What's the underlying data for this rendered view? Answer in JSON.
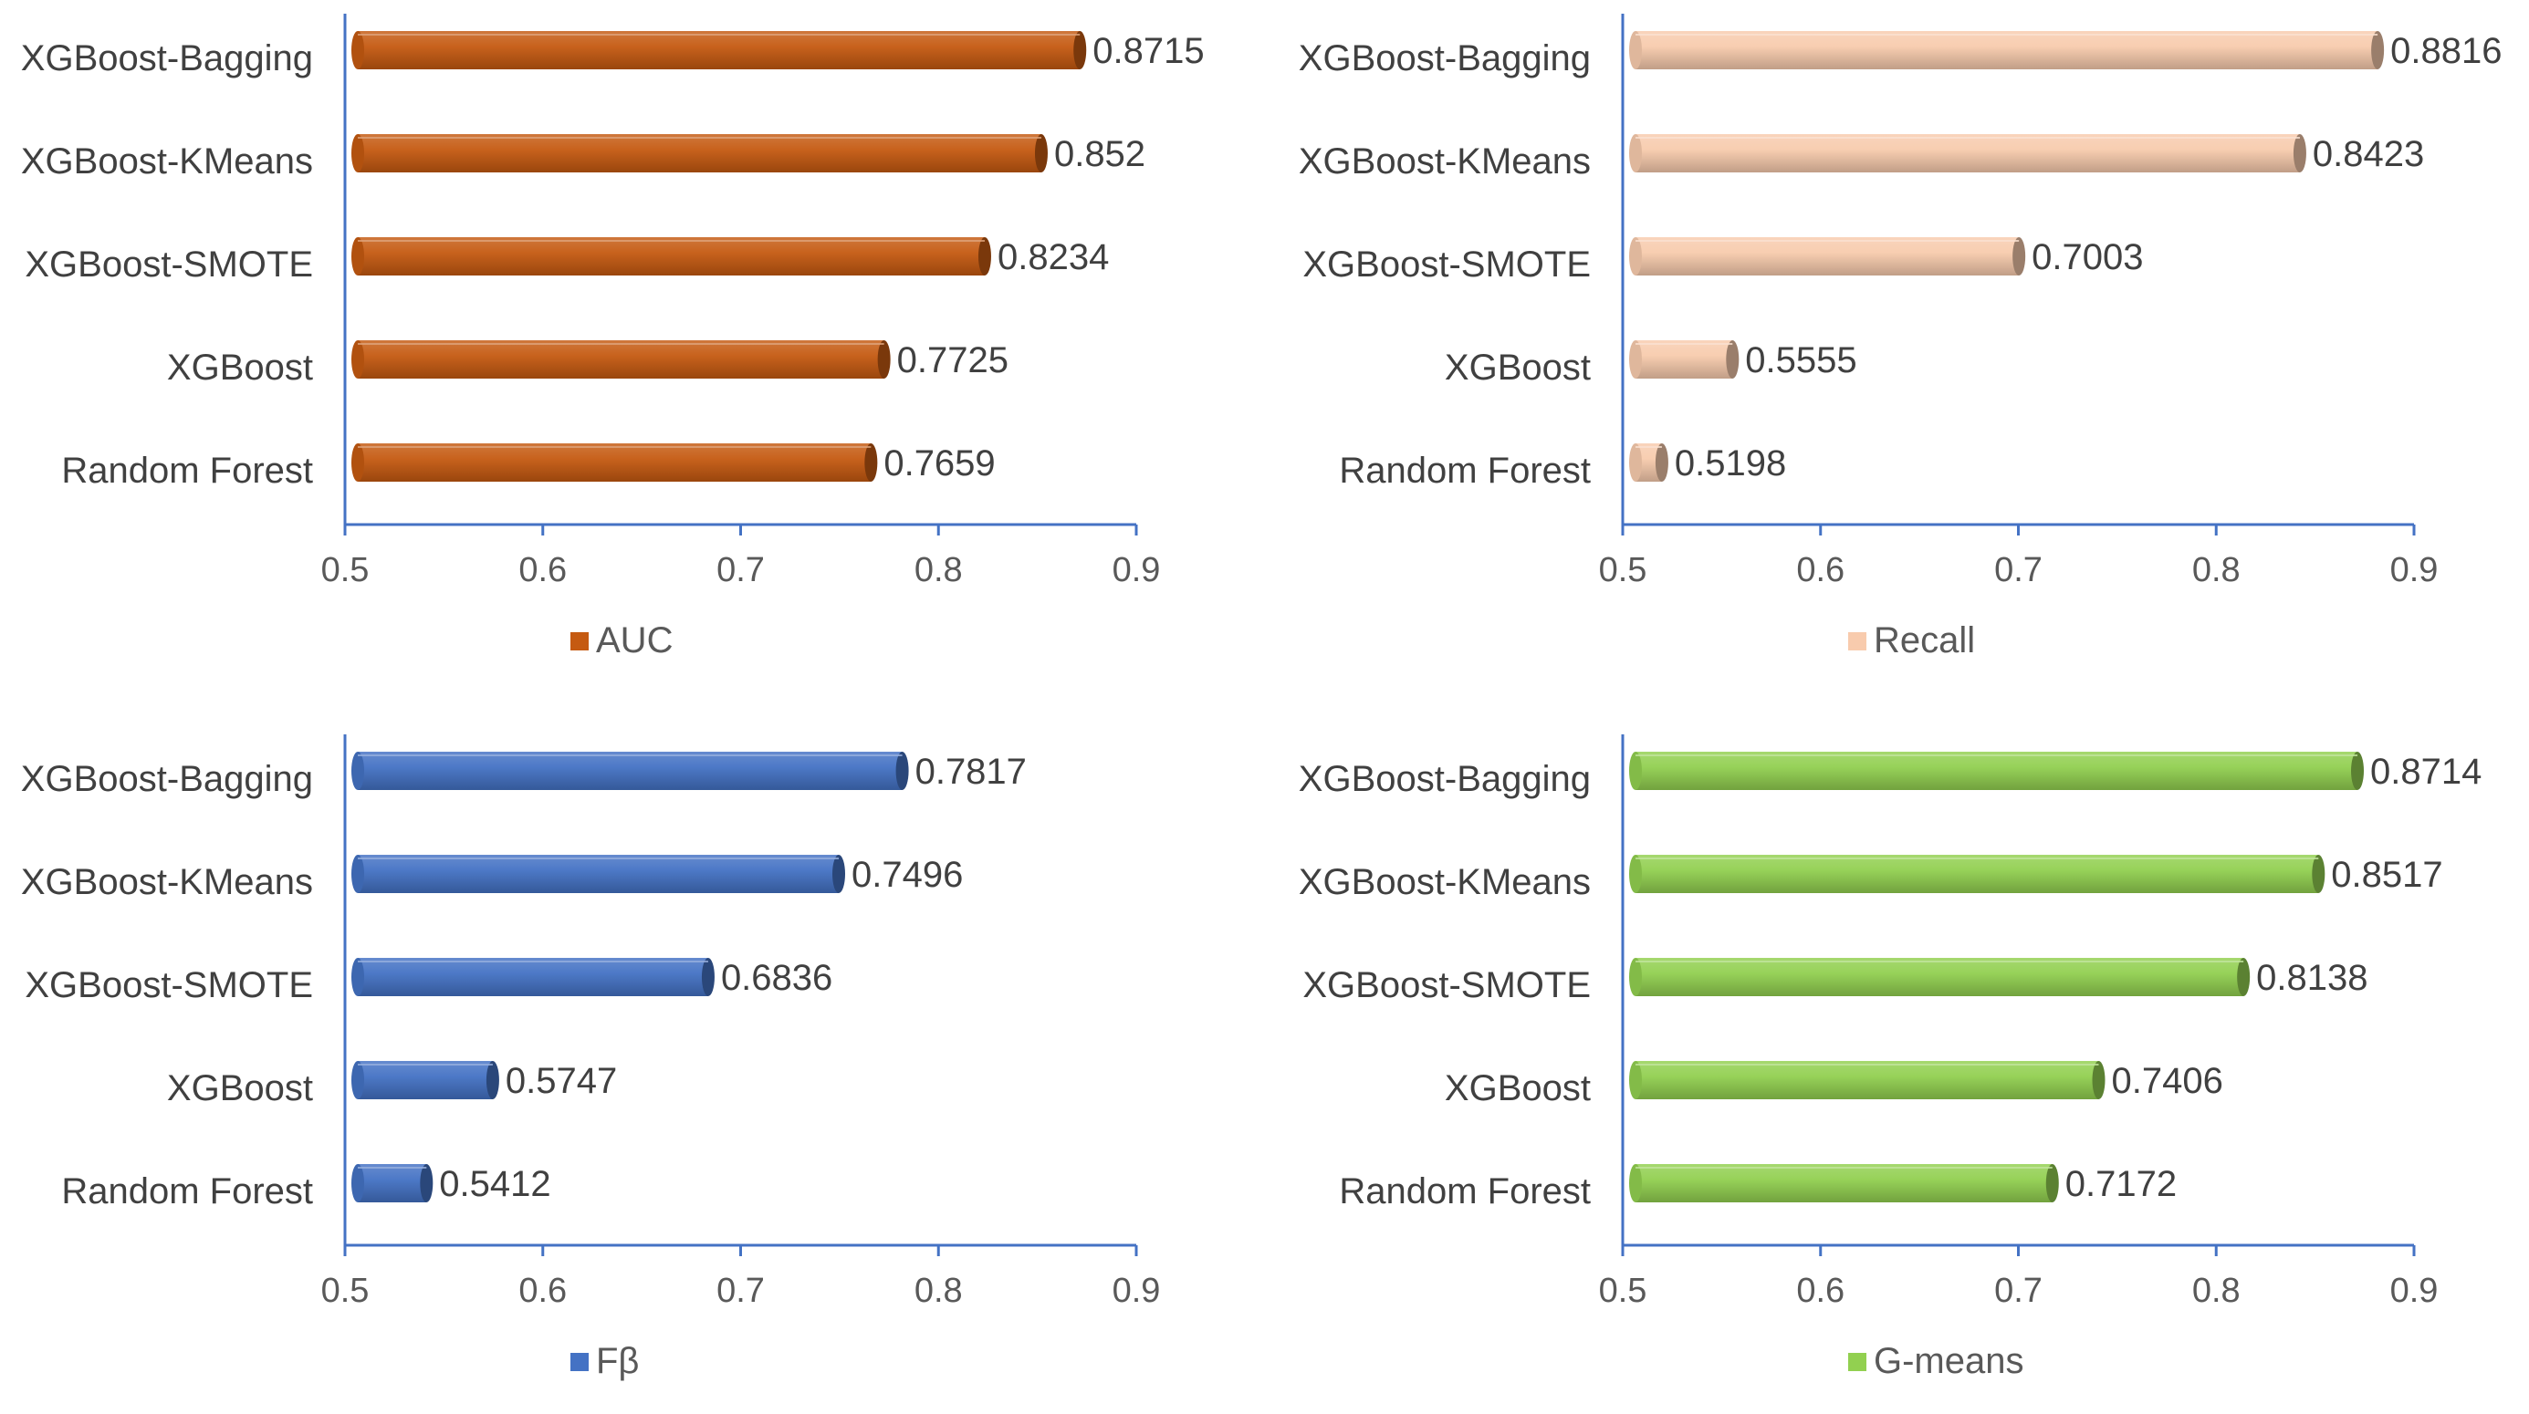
{
  "chart_data": [
    {
      "type": "bar",
      "orientation": "horizontal",
      "categories": [
        "XGBoost-Bagging",
        "XGBoost-KMeans",
        "XGBoost-SMOTE",
        "XGBoost",
        "Random Forest"
      ],
      "series": [
        {
          "name": "AUC",
          "values": [
            0.8715,
            0.852,
            0.8234,
            0.7725,
            0.7659
          ]
        }
      ],
      "value_labels": [
        "0.8715",
        "0.852",
        "0.8234",
        "0.7725",
        "0.7659"
      ],
      "xticks": [
        "0.5",
        "0.6",
        "0.7",
        "0.8",
        "0.9"
      ],
      "xlim": [
        0.5,
        0.9
      ],
      "legend": "AUC",
      "legend_position": "bottom-center",
      "color": "#C55A11",
      "title": "",
      "xlabel": "",
      "ylabel": ""
    },
    {
      "type": "bar",
      "orientation": "horizontal",
      "categories": [
        "XGBoost-Bagging",
        "XGBoost-KMeans",
        "XGBoost-SMOTE",
        "XGBoost",
        "Random Forest"
      ],
      "series": [
        {
          "name": "Recall",
          "values": [
            0.8816,
            0.8423,
            0.7003,
            0.5555,
            0.5198
          ]
        }
      ],
      "value_labels": [
        "0.8816",
        "0.8423",
        "0.7003",
        "0.5555",
        "0.5198"
      ],
      "xticks": [
        "0.5",
        "0.6",
        "0.7",
        "0.8",
        "0.9"
      ],
      "xlim": [
        0.5,
        0.9
      ],
      "legend": "Recall",
      "legend_position": "bottom-center",
      "color": "#F8CBAD",
      "title": "",
      "xlabel": "",
      "ylabel": ""
    },
    {
      "type": "bar",
      "orientation": "horizontal",
      "categories": [
        "XGBoost-Bagging",
        "XGBoost-KMeans",
        "XGBoost-SMOTE",
        "XGBoost",
        "Random Forest"
      ],
      "series": [
        {
          "name": "Fβ",
          "values": [
            0.7817,
            0.7496,
            0.6836,
            0.5747,
            0.5412
          ]
        }
      ],
      "value_labels": [
        "0.7817",
        "0.7496",
        "0.6836",
        "0.5747",
        "0.5412"
      ],
      "xticks": [
        "0.5",
        "0.6",
        "0.7",
        "0.8",
        "0.9"
      ],
      "xlim": [
        0.5,
        0.9
      ],
      "legend": "Fβ",
      "legend_position": "bottom-center",
      "color": "#4472C4",
      "title": "",
      "xlabel": "",
      "ylabel": ""
    },
    {
      "type": "bar",
      "orientation": "horizontal",
      "categories": [
        "XGBoost-Bagging",
        "XGBoost-KMeans",
        "XGBoost-SMOTE",
        "XGBoost",
        "Random Forest"
      ],
      "series": [
        {
          "name": "G-means",
          "values": [
            0.8714,
            0.8517,
            0.8138,
            0.7406,
            0.7172
          ]
        }
      ],
      "value_labels": [
        "0.8714",
        "0.8517",
        "0.8138",
        "0.7406",
        "0.7172"
      ],
      "xticks": [
        "0.5",
        "0.6",
        "0.7",
        "0.8",
        "0.9"
      ],
      "xlim": [
        0.5,
        0.9
      ],
      "legend": "G-means",
      "legend_position": "bottom-center",
      "color": "#92D050",
      "title": "",
      "xlabel": "",
      "ylabel": ""
    }
  ]
}
